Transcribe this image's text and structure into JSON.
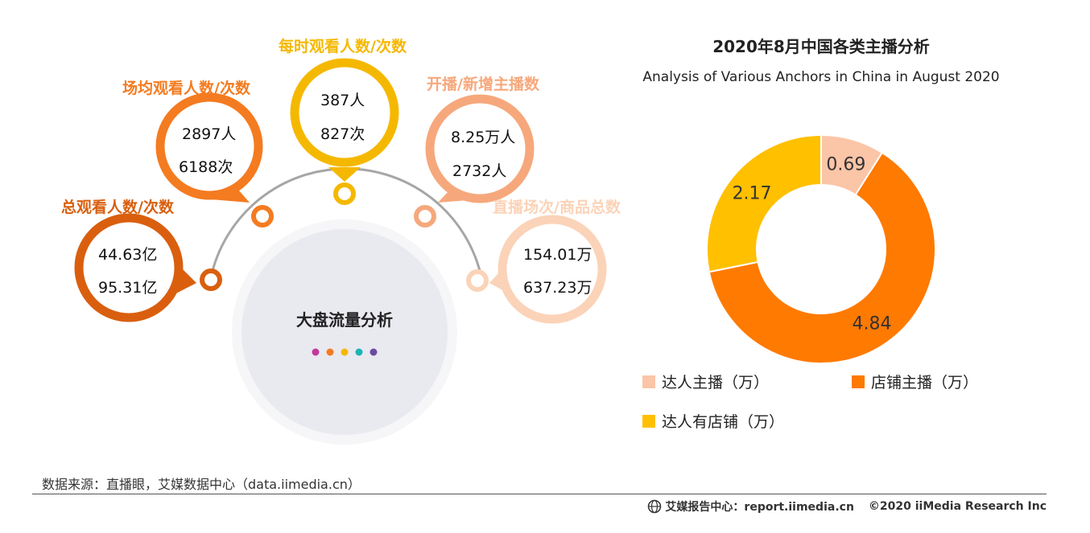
{
  "infographic": {
    "center_label": "大盘流量分析",
    "bubbles": [
      {
        "label": "总观看人数/次数",
        "line1": "44.63亿",
        "line2": "95.31亿",
        "color": "#d95f0e"
      },
      {
        "label": "场均观看人数/次数",
        "line1": "2897人",
        "line2": "6188次",
        "color": "#f47b20"
      },
      {
        "label": "每时观看人数/次数",
        "line1": "387人",
        "line2": "827次",
        "color": "#f5b800"
      },
      {
        "label": "开播/新增主播数",
        "line1": "8.25万人",
        "line2": "2732人",
        "color": "#f6a87c"
      },
      {
        "label": "直播场次/商品总数",
        "line1": "154.01万",
        "line2": "637.23万",
        "color": "#fbd3b8"
      }
    ],
    "dot_colors": [
      "#c0399b",
      "#f47b20",
      "#f5b800",
      "#1bb3b6",
      "#6a4ca0"
    ]
  },
  "chart_data": {
    "type": "pie",
    "title": "2020年8月中国各类主播分析",
    "subtitle": "Analysis of Various Anchors in China in August 2020",
    "categories": [
      "达人主播（万）",
      "店铺主播（万）",
      "达人有店铺（万）"
    ],
    "values": [
      0.69,
      4.84,
      2.17
    ],
    "data_labels": [
      "0.69",
      "4.84",
      "2.17"
    ],
    "colors": [
      "#fbc5a7",
      "#ff7a00",
      "#ffc000"
    ],
    "donut": true,
    "legend_position": "bottom"
  },
  "footer": {
    "source": "数据来源：直播眼，艾媒数据中心（data.iimedia.cn）",
    "report_center": "艾媒报告中心：report.iimedia.cn",
    "copyright": "©2020  iiMedia Research  Inc"
  }
}
